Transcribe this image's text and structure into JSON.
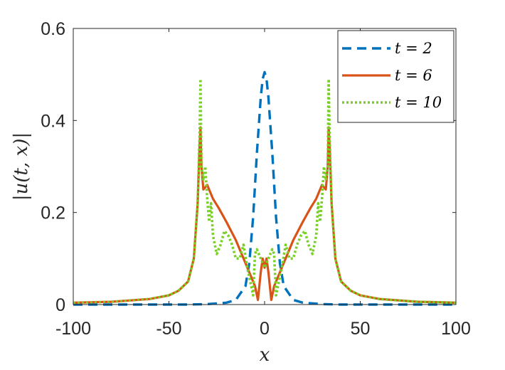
{
  "chart_data": {
    "type": "line",
    "title": "",
    "xlabel": "x",
    "ylabel": "|u(t, x)|",
    "xlim": [
      -100,
      100
    ],
    "ylim": [
      0,
      0.6
    ],
    "xticks": [
      -100,
      -50,
      0,
      50,
      100
    ],
    "xtick_labels": [
      "-100",
      "-50",
      "0",
      "50",
      "100"
    ],
    "yticks": [
      0,
      0.2,
      0.4,
      0.6
    ],
    "ytick_labels": [
      "0",
      "0.2",
      "0.4",
      "0.6"
    ],
    "grid": false,
    "legend_position": "top-right",
    "series": [
      {
        "name": "t = 2",
        "color": "#0072BD",
        "style": "dashed",
        "x": [
          -100,
          -60,
          -40,
          -30,
          -20,
          -15,
          -10,
          -8,
          -6,
          -4,
          -2,
          -1,
          0,
          1,
          2,
          4,
          6,
          8,
          10,
          15,
          20,
          30,
          40,
          60,
          100
        ],
        "y": [
          0.0,
          0.0,
          0.0,
          0.001,
          0.004,
          0.01,
          0.04,
          0.09,
          0.19,
          0.33,
          0.45,
          0.49,
          0.505,
          0.49,
          0.45,
          0.33,
          0.19,
          0.09,
          0.04,
          0.01,
          0.004,
          0.001,
          0.0,
          0.0,
          0.0
        ]
      },
      {
        "name": "t = 6",
        "color": "#D95319",
        "style": "solid",
        "x": [
          -100,
          -80,
          -60,
          -50,
          -45,
          -40,
          -37,
          -35,
          -34,
          -33.5,
          -33,
          -32,
          -30,
          -27,
          -24,
          -20,
          -15,
          -10,
          -7,
          -5,
          -3.5,
          -2,
          -1,
          0,
          1,
          2,
          3.5,
          5,
          7,
          10,
          15,
          20,
          24,
          27,
          30,
          32,
          33,
          33.5,
          34,
          35,
          37,
          40,
          45,
          50,
          60,
          80,
          100
        ],
        "y": [
          0.004,
          0.006,
          0.012,
          0.02,
          0.03,
          0.05,
          0.1,
          0.22,
          0.34,
          0.385,
          0.3,
          0.25,
          0.26,
          0.23,
          0.21,
          0.18,
          0.14,
          0.09,
          0.06,
          0.04,
          0.01,
          0.07,
          0.1,
          0.08,
          0.1,
          0.07,
          0.01,
          0.04,
          0.06,
          0.09,
          0.14,
          0.18,
          0.21,
          0.23,
          0.26,
          0.25,
          0.3,
          0.385,
          0.34,
          0.22,
          0.1,
          0.05,
          0.03,
          0.02,
          0.012,
          0.006,
          0.004
        ]
      },
      {
        "name": "t = 10",
        "color": "#77D022",
        "style": "dotted",
        "x": [
          -100,
          -80,
          -60,
          -50,
          -45,
          -40,
          -37,
          -35,
          -34,
          -33.5,
          -33,
          -32,
          -31,
          -30,
          -29,
          -28,
          -27,
          -25,
          -23,
          -21,
          -19,
          -17,
          -15,
          -13,
          -11,
          -9,
          -7,
          -6,
          -5,
          -4,
          -2,
          0,
          2,
          4,
          5,
          6,
          7,
          9,
          11,
          13,
          15,
          17,
          19,
          21,
          23,
          25,
          27,
          28,
          29,
          30,
          31,
          32,
          33,
          33.5,
          34,
          35,
          37,
          40,
          45,
          50,
          60,
          80,
          100
        ],
        "y": [
          0.004,
          0.006,
          0.012,
          0.02,
          0.03,
          0.05,
          0.1,
          0.22,
          0.36,
          0.49,
          0.3,
          0.27,
          0.3,
          0.23,
          0.18,
          0.22,
          0.15,
          0.11,
          0.13,
          0.16,
          0.15,
          0.13,
          0.1,
          0.1,
          0.13,
          0.08,
          0.04,
          0.02,
          0.11,
          0.12,
          0.1,
          0.08,
          0.1,
          0.12,
          0.11,
          0.02,
          0.04,
          0.08,
          0.13,
          0.1,
          0.1,
          0.13,
          0.15,
          0.16,
          0.13,
          0.11,
          0.15,
          0.22,
          0.18,
          0.23,
          0.3,
          0.27,
          0.3,
          0.49,
          0.36,
          0.22,
          0.1,
          0.05,
          0.03,
          0.02,
          0.012,
          0.006,
          0.004
        ]
      }
    ]
  }
}
